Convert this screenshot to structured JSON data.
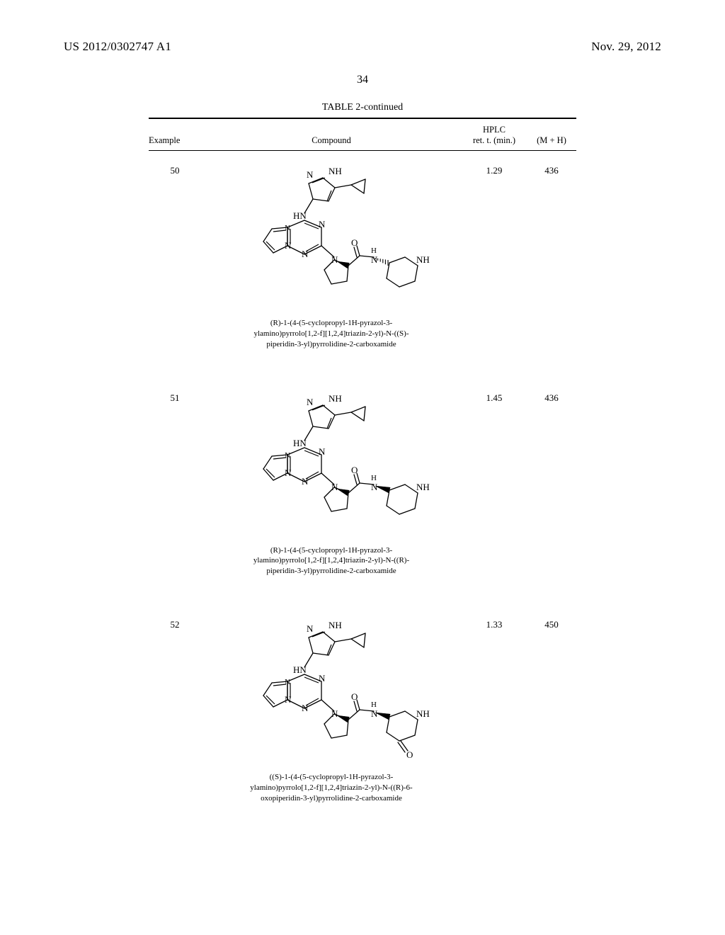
{
  "header": {
    "pubno": "US 2012/0302747 A1",
    "date": "Nov. 29, 2012"
  },
  "page_number": "34",
  "table": {
    "title": "TABLE 2-continued",
    "columns": {
      "example": "Example",
      "compound": "Compound",
      "hplc": "HPLC\nret. t. (min.)",
      "mh": "(M + H)"
    },
    "rows": [
      {
        "example": "50",
        "hplc": "1.29",
        "mh": "436",
        "iupac": [
          "(R)-1-(4-(5-cyclopropyl-1H-pyrazol-3-",
          "ylamino)pyrrolo[1,2-f][1,2,4]triazin-2-yl)-N-((S)-",
          "piperidin-3-yl)pyrrolidine-2-carboxamide"
        ],
        "stereo": "hash",
        "keto": false
      },
      {
        "example": "51",
        "hplc": "1.45",
        "mh": "436",
        "iupac": [
          "(R)-1-(4-(5-cyclopropyl-1H-pyrazol-3-",
          "ylamino)pyrrolo[1,2-f][1,2,4]triazin-2-yl)-N-((R)-",
          "piperidin-3-yl)pyrrolidine-2-carboxamide"
        ],
        "stereo": "wedge",
        "keto": false
      },
      {
        "example": "52",
        "hplc": "1.33",
        "mh": "450",
        "iupac": [
          "((S)-1-(4-(5-cyclopropyl-1H-pyrazol-3-",
          "ylamino)pyrrolo[1,2-f][1,2,4]triazin-2-yl)-N-((R)-6-",
          "oxopiperidin-3-yl)pyrrolidine-2-carboxamide"
        ],
        "stereo": "wedge",
        "keto": true
      }
    ]
  }
}
